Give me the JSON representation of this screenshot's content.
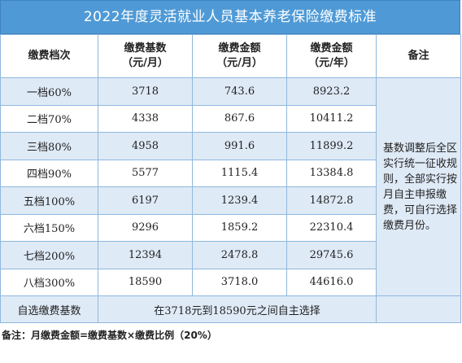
{
  "title": "2022年度灵活就业人员基本养老保险缴费标准",
  "headers": {
    "level": "缴费档次",
    "base": "缴费基数\n（元/月）",
    "monthly": "缴费金额\n（元/月）",
    "yearly": "缴费金额\n（元/年）",
    "remark": "备注"
  },
  "rows": [
    {
      "level": "一档60%",
      "base": "3718",
      "monthly": "743.6",
      "yearly": "8923.2"
    },
    {
      "level": "二档70%",
      "base": "4338",
      "monthly": "867.6",
      "yearly": "10411.2"
    },
    {
      "level": "三档80%",
      "base": "4958",
      "monthly": "991.6",
      "yearly": "11899.2"
    },
    {
      "level": "四档90%",
      "base": "5577",
      "monthly": "1115.4",
      "yearly": "13384.8"
    },
    {
      "level": "五档100%",
      "base": "6197",
      "monthly": "1239.4",
      "yearly": "14872.8"
    },
    {
      "level": "六档150%",
      "base": "9296",
      "monthly": "1859.2",
      "yearly": "22310.4"
    },
    {
      "level": "七档200%",
      "base": "12394",
      "monthly": "2478.8",
      "yearly": "29745.6"
    },
    {
      "level": "八档300%",
      "base": "18590",
      "monthly": "3718.0",
      "yearly": "44616.0"
    }
  ],
  "remark_text": "基数调整后全区实行统一征收规则，全部实行按月自主申报缴费，可自行选择缴费月份。",
  "custom": {
    "label": "自选缴费基数",
    "value": "在3718元到18590元之间自主选择"
  },
  "footer": "备注：月缴费金额=缴费基数×缴费比例（20%）",
  "colors": {
    "title_bg": "#4f9ad6",
    "shade_bg": "#dfeaf7",
    "border": "#8fb8de"
  }
}
